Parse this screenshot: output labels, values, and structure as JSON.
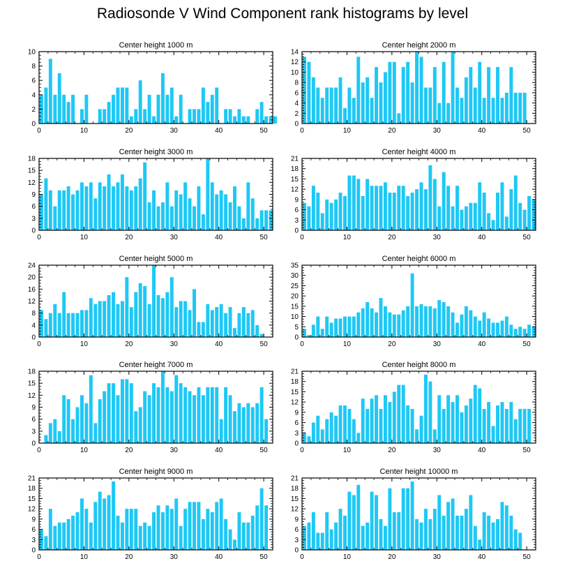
{
  "title": "Radiosonde V Wind Component rank histograms by level",
  "colors": {
    "bar": "#1ec8f5",
    "axis": "#000000"
  },
  "chart_data": [
    {
      "type": "bar",
      "title": "Center height 1000 m",
      "xlim": [
        0,
        52
      ],
      "ylim": [
        0,
        10
      ],
      "xticks": [
        0,
        10,
        20,
        30,
        40,
        50
      ],
      "yticks": [
        0,
        2,
        4,
        6,
        8,
        10
      ],
      "values": [
        4,
        5,
        9,
        4,
        7,
        4,
        3,
        4,
        0,
        2,
        4,
        0,
        0,
        2,
        2,
        3,
        4,
        5,
        5,
        5,
        1,
        2,
        6,
        2,
        4,
        1,
        4,
        7,
        4,
        5,
        1,
        4,
        0,
        2,
        2,
        2,
        5,
        3,
        4,
        5,
        0,
        2,
        2,
        1,
        2,
        1,
        1,
        0,
        2,
        3,
        1,
        1,
        1
      ]
    },
    {
      "type": "bar",
      "title": "Center height 2000 m",
      "xlim": [
        0,
        52
      ],
      "ylim": [
        0,
        14
      ],
      "xticks": [
        0,
        10,
        20,
        30,
        40,
        50
      ],
      "yticks": [
        0,
        2,
        4,
        6,
        8,
        10,
        12,
        14
      ],
      "values": [
        13,
        12,
        9,
        7,
        5,
        7,
        7,
        7,
        9,
        3,
        7,
        5,
        13,
        8,
        9,
        5,
        11,
        8,
        10,
        12,
        12,
        2,
        11,
        12,
        8,
        14,
        13,
        7,
        7,
        11,
        4,
        12,
        4,
        14,
        7,
        5,
        9,
        11,
        7,
        12,
        5,
        11,
        5,
        11,
        5,
        6,
        11,
        6,
        6,
        6
      ]
    },
    {
      "type": "bar",
      "title": "Center height 3000 m",
      "xlim": [
        0,
        52
      ],
      "ylim": [
        0,
        18
      ],
      "xticks": [
        0,
        10,
        20,
        30,
        40,
        50
      ],
      "yticks": [
        0,
        3,
        6,
        9,
        12,
        15,
        18
      ],
      "values": [
        9,
        13,
        10,
        6,
        10,
        10,
        11,
        9,
        10,
        12,
        11,
        12,
        8,
        12,
        11,
        14,
        11,
        12,
        14,
        11,
        10,
        11,
        13,
        17,
        7,
        10,
        6,
        7,
        12,
        6,
        10,
        9,
        12,
        8,
        6,
        11,
        4,
        18,
        12,
        9,
        10,
        9,
        7,
        11,
        6,
        3,
        12,
        8,
        3,
        5,
        5,
        5
      ]
    },
    {
      "type": "bar",
      "title": "Center height 4000 m",
      "xlim": [
        0,
        52
      ],
      "ylim": [
        0,
        21
      ],
      "xticks": [
        0,
        10,
        20,
        30,
        40,
        50
      ],
      "yticks": [
        0,
        3,
        6,
        9,
        12,
        15,
        18,
        21
      ],
      "values": [
        8,
        7,
        13,
        11,
        5,
        9,
        8,
        9,
        11,
        10,
        16,
        16,
        15,
        10,
        15,
        13,
        13,
        13,
        14,
        11,
        11,
        13,
        13,
        10,
        11,
        12,
        14,
        12,
        19,
        15,
        7,
        17,
        13,
        7,
        13,
        6,
        7,
        8,
        8,
        14,
        11,
        5,
        3,
        11,
        14,
        4,
        12,
        16,
        8,
        6,
        10,
        9
      ]
    },
    {
      "type": "bar",
      "title": "Center height 5000 m",
      "xlim": [
        0,
        52
      ],
      "ylim": [
        0,
        24
      ],
      "xticks": [
        0,
        10,
        20,
        30,
        40,
        50
      ],
      "yticks": [
        0,
        4,
        8,
        12,
        16,
        20,
        24
      ],
      "values": [
        9,
        6,
        8,
        11,
        8,
        15,
        8,
        8,
        8,
        9,
        9,
        13,
        11,
        12,
        12,
        14,
        15,
        11,
        12,
        20,
        10,
        15,
        18,
        17,
        11,
        24,
        14,
        13,
        15,
        20,
        10,
        12,
        12,
        9,
        16,
        5,
        5,
        11,
        9,
        10,
        11,
        8,
        10,
        3,
        8,
        10,
        8,
        9,
        4,
        1
      ]
    },
    {
      "type": "bar",
      "title": "Center height 6000 m",
      "xlim": [
        0,
        52
      ],
      "ylim": [
        0,
        35
      ],
      "xticks": [
        0,
        10,
        20,
        30,
        40,
        50
      ],
      "yticks": [
        0,
        5,
        10,
        15,
        20,
        25,
        30,
        35
      ],
      "values": [
        4,
        1,
        6,
        10,
        4,
        10,
        7,
        9,
        9,
        10,
        10,
        10,
        12,
        14,
        17,
        14,
        12,
        19,
        15,
        12,
        11,
        11,
        13,
        15,
        31,
        15,
        16,
        15,
        15,
        14,
        18,
        17,
        15,
        12,
        7,
        11,
        15,
        13,
        10,
        8,
        12,
        9,
        7,
        7,
        8,
        10,
        6,
        4,
        5,
        4,
        6,
        5
      ]
    },
    {
      "type": "bar",
      "title": "Center height 7000 m",
      "xlim": [
        0,
        52
      ],
      "ylim": [
        0,
        18
      ],
      "xticks": [
        0,
        10,
        20,
        30,
        40,
        50
      ],
      "yticks": [
        0,
        3,
        6,
        9,
        12,
        15,
        18
      ],
      "values": [
        0,
        2,
        5,
        6,
        3,
        12,
        11,
        6,
        9,
        12,
        10,
        17,
        5,
        11,
        13,
        15,
        15,
        12,
        16,
        16,
        15,
        8,
        9,
        13,
        12,
        15,
        14,
        18,
        14,
        13,
        17,
        15,
        14,
        13,
        12,
        14,
        12,
        14,
        14,
        14,
        6,
        14,
        12,
        8,
        10,
        9,
        10,
        9,
        10,
        14,
        6
      ]
    },
    {
      "type": "bar",
      "title": "Center height 8000 m",
      "xlim": [
        0,
        52
      ],
      "ylim": [
        0,
        21
      ],
      "xticks": [
        0,
        10,
        20,
        30,
        40,
        50
      ],
      "yticks": [
        0,
        3,
        6,
        9,
        12,
        15,
        18,
        21
      ],
      "values": [
        3,
        2,
        6,
        8,
        4,
        7,
        9,
        8,
        11,
        11,
        10,
        7,
        3,
        13,
        10,
        13,
        14,
        10,
        14,
        12,
        15,
        17,
        17,
        11,
        10,
        4,
        8,
        20,
        18,
        4,
        14,
        10,
        14,
        12,
        14,
        9,
        11,
        13,
        17,
        16,
        10,
        12,
        5,
        11,
        12,
        10,
        12,
        7,
        10,
        10,
        10
      ]
    },
    {
      "type": "bar",
      "title": "Center height 9000 m",
      "xlim": [
        0,
        52
      ],
      "ylim": [
        0,
        21
      ],
      "xticks": [
        0,
        10,
        20,
        30,
        40,
        50
      ],
      "yticks": [
        0,
        3,
        6,
        9,
        12,
        15,
        18,
        21
      ],
      "values": [
        6,
        4,
        12,
        7,
        8,
        8,
        9,
        10,
        11,
        15,
        12,
        8,
        14,
        17,
        15,
        16,
        20,
        10,
        8,
        12,
        12,
        12,
        7,
        8,
        7,
        11,
        13,
        11,
        13,
        12,
        15,
        7,
        12,
        14,
        14,
        14,
        9,
        12,
        11,
        14,
        15,
        9,
        6,
        3,
        11,
        8,
        8,
        10,
        13,
        18,
        13
      ]
    },
    {
      "type": "bar",
      "title": "Center height 10000 m",
      "xlim": [
        0,
        52
      ],
      "ylim": [
        0,
        21
      ],
      "xticks": [
        0,
        10,
        20,
        30,
        40,
        50
      ],
      "yticks": [
        0,
        3,
        6,
        9,
        12,
        15,
        18,
        21
      ],
      "values": [
        7,
        8,
        11,
        5,
        5,
        11,
        6,
        8,
        12,
        10,
        17,
        16,
        19,
        7,
        8,
        17,
        16,
        9,
        7,
        18,
        11,
        11,
        18,
        18,
        20,
        9,
        8,
        12,
        9,
        12,
        16,
        10,
        14,
        15,
        10,
        10,
        12,
        16,
        7,
        3,
        11,
        10,
        8,
        9,
        14,
        13,
        10,
        6,
        5
      ]
    }
  ]
}
